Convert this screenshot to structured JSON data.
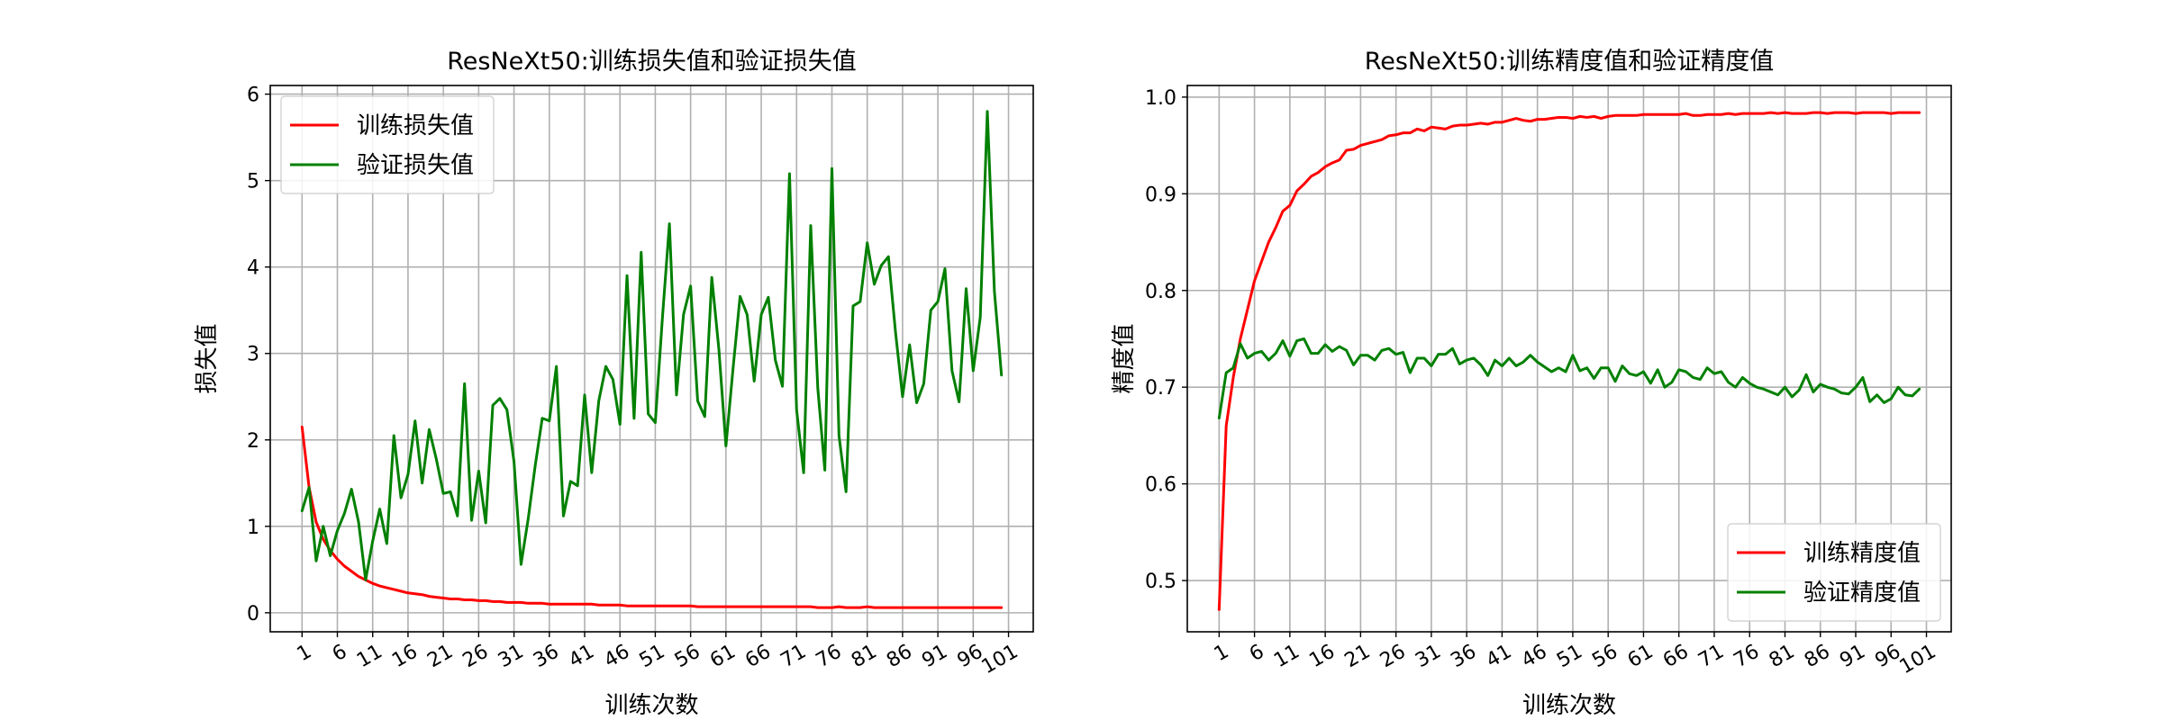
{
  "chart_data": [
    {
      "type": "line",
      "title": "ResNeXt50:训练损失值和验证损失值",
      "xlabel": "训练次数",
      "ylabel": "损失值",
      "xlim": [
        -3.5,
        104.5
      ],
      "ylim": [
        -0.22,
        6.1
      ],
      "xticks": [
        1,
        6,
        11,
        16,
        21,
        26,
        31,
        36,
        41,
        46,
        51,
        56,
        61,
        66,
        71,
        76,
        81,
        86,
        91,
        96,
        101
      ],
      "xtick_labels": [
        "1",
        "6",
        "11",
        "16",
        "21",
        "26",
        "31",
        "36",
        "41",
        "46",
        "51",
        "56",
        "61",
        "66",
        "71",
        "76",
        "81",
        "86",
        "91",
        "96",
        "101"
      ],
      "yticks": [
        0,
        1,
        2,
        3,
        4,
        5,
        6
      ],
      "ytick_labels": [
        "0",
        "1",
        "2",
        "3",
        "4",
        "5",
        "6"
      ],
      "grid": true,
      "legend_position": "upper-left",
      "x": [
        1,
        2,
        3,
        4,
        5,
        6,
        7,
        8,
        9,
        10,
        11,
        12,
        13,
        14,
        15,
        16,
        17,
        18,
        19,
        20,
        21,
        22,
        23,
        24,
        25,
        26,
        27,
        28,
        29,
        30,
        31,
        32,
        33,
        34,
        35,
        36,
        37,
        38,
        39,
        40,
        41,
        42,
        43,
        44,
        45,
        46,
        47,
        48,
        49,
        50,
        51,
        52,
        53,
        54,
        55,
        56,
        57,
        58,
        59,
        60,
        61,
        62,
        63,
        64,
        65,
        66,
        67,
        68,
        69,
        70,
        71,
        72,
        73,
        74,
        75,
        76,
        77,
        78,
        79,
        80,
        81,
        82,
        83,
        84,
        85,
        86,
        87,
        88,
        89,
        90,
        91,
        92,
        93,
        94,
        95,
        96,
        97,
        98,
        99,
        100
      ],
      "series": [
        {
          "name": "训练损失值",
          "color": "#ff0000",
          "values": [
            2.15,
            1.45,
            1.05,
            0.85,
            0.72,
            0.62,
            0.54,
            0.48,
            0.42,
            0.38,
            0.34,
            0.31,
            0.29,
            0.27,
            0.25,
            0.23,
            0.22,
            0.21,
            0.19,
            0.18,
            0.17,
            0.16,
            0.16,
            0.15,
            0.15,
            0.14,
            0.14,
            0.13,
            0.13,
            0.12,
            0.12,
            0.12,
            0.11,
            0.11,
            0.11,
            0.1,
            0.1,
            0.1,
            0.1,
            0.1,
            0.1,
            0.1,
            0.09,
            0.09,
            0.09,
            0.09,
            0.08,
            0.08,
            0.08,
            0.08,
            0.08,
            0.08,
            0.08,
            0.08,
            0.08,
            0.08,
            0.07,
            0.07,
            0.07,
            0.07,
            0.07,
            0.07,
            0.07,
            0.07,
            0.07,
            0.07,
            0.07,
            0.07,
            0.07,
            0.07,
            0.07,
            0.07,
            0.07,
            0.06,
            0.06,
            0.06,
            0.07,
            0.06,
            0.06,
            0.06,
            0.07,
            0.06,
            0.06,
            0.06,
            0.06,
            0.06,
            0.06,
            0.06,
            0.06,
            0.06,
            0.06,
            0.06,
            0.06,
            0.06,
            0.06,
            0.06,
            0.06,
            0.06,
            0.06,
            0.06
          ]
        },
        {
          "name": "验证损失值",
          "color": "#008000",
          "values": [
            1.18,
            1.45,
            0.6,
            1.0,
            0.66,
            0.95,
            1.15,
            1.43,
            1.05,
            0.38,
            0.83,
            1.2,
            0.8,
            2.05,
            1.33,
            1.6,
            2.22,
            1.5,
            2.12,
            1.78,
            1.38,
            1.4,
            1.12,
            2.65,
            1.07,
            1.64,
            1.04,
            2.4,
            2.48,
            2.35,
            1.75,
            0.56,
            1.08,
            1.7,
            2.25,
            2.22,
            2.85,
            1.12,
            1.52,
            1.47,
            2.52,
            1.62,
            2.45,
            2.85,
            2.7,
            2.18,
            3.9,
            2.25,
            4.17,
            2.3,
            2.2,
            3.4,
            4.5,
            2.52,
            3.45,
            3.78,
            2.45,
            2.27,
            3.88,
            3.05,
            1.93,
            2.82,
            3.66,
            3.45,
            2.68,
            3.45,
            3.65,
            2.92,
            2.62,
            5.08,
            2.35,
            1.62,
            4.48,
            2.6,
            1.65,
            5.14,
            2.05,
            1.4,
            3.55,
            3.6,
            4.28,
            3.8,
            4.02,
            4.12,
            3.25,
            2.5,
            3.1,
            2.43,
            2.65,
            3.5,
            3.6,
            3.98,
            2.8,
            2.44,
            3.75,
            2.8,
            3.42,
            5.8,
            3.72,
            2.75
          ]
        }
      ]
    },
    {
      "type": "line",
      "title": "ResNeXt50:训练精度值和验证精度值",
      "xlabel": "训练次数",
      "ylabel": "精度值",
      "xlim": [
        -3.5,
        104.5
      ],
      "ylim": [
        0.447,
        1.012
      ],
      "xticks": [
        1,
        6,
        11,
        16,
        21,
        26,
        31,
        36,
        41,
        46,
        51,
        56,
        61,
        66,
        71,
        76,
        81,
        86,
        91,
        96,
        101
      ],
      "xtick_labels": [
        "1",
        "6",
        "11",
        "16",
        "21",
        "26",
        "31",
        "36",
        "41",
        "46",
        "51",
        "56",
        "61",
        "66",
        "71",
        "76",
        "81",
        "86",
        "91",
        "96",
        "101"
      ],
      "yticks": [
        0.5,
        0.6,
        0.7,
        0.8,
        0.9,
        1.0
      ],
      "ytick_labels": [
        "0.5",
        "0.6",
        "0.7",
        "0.8",
        "0.9",
        "1.0"
      ],
      "grid": true,
      "legend_position": "lower-right",
      "x": [
        1,
        2,
        3,
        4,
        5,
        6,
        7,
        8,
        9,
        10,
        11,
        12,
        13,
        14,
        15,
        16,
        17,
        18,
        19,
        20,
        21,
        22,
        23,
        24,
        25,
        26,
        27,
        28,
        29,
        30,
        31,
        32,
        33,
        34,
        35,
        36,
        37,
        38,
        39,
        40,
        41,
        42,
        43,
        44,
        45,
        46,
        47,
        48,
        49,
        50,
        51,
        52,
        53,
        54,
        55,
        56,
        57,
        58,
        59,
        60,
        61,
        62,
        63,
        64,
        65,
        66,
        67,
        68,
        69,
        70,
        71,
        72,
        73,
        74,
        75,
        76,
        77,
        78,
        79,
        80,
        81,
        82,
        83,
        84,
        85,
        86,
        87,
        88,
        89,
        90,
        91,
        92,
        93,
        94,
        95,
        96,
        97,
        98,
        99,
        100
      ],
      "series": [
        {
          "name": "训练精度值",
          "color": "#ff0000",
          "values": [
            0.47,
            0.66,
            0.71,
            0.75,
            0.78,
            0.81,
            0.83,
            0.85,
            0.865,
            0.882,
            0.888,
            0.903,
            0.91,
            0.918,
            0.922,
            0.928,
            0.932,
            0.935,
            0.945,
            0.946,
            0.95,
            0.952,
            0.954,
            0.956,
            0.96,
            0.961,
            0.963,
            0.963,
            0.967,
            0.965,
            0.969,
            0.968,
            0.967,
            0.97,
            0.971,
            0.971,
            0.972,
            0.973,
            0.972,
            0.974,
            0.974,
            0.976,
            0.978,
            0.976,
            0.975,
            0.977,
            0.977,
            0.978,
            0.979,
            0.979,
            0.978,
            0.98,
            0.979,
            0.98,
            0.978,
            0.98,
            0.981,
            0.981,
            0.981,
            0.981,
            0.982,
            0.982,
            0.982,
            0.982,
            0.982,
            0.982,
            0.983,
            0.981,
            0.981,
            0.982,
            0.982,
            0.982,
            0.983,
            0.982,
            0.983,
            0.983,
            0.983,
            0.983,
            0.984,
            0.983,
            0.984,
            0.983,
            0.983,
            0.983,
            0.984,
            0.984,
            0.983,
            0.984,
            0.984,
            0.984,
            0.983,
            0.984,
            0.984,
            0.984,
            0.984,
            0.983,
            0.984,
            0.984,
            0.984,
            0.984
          ]
        },
        {
          "name": "验证精度值",
          "color": "#008000",
          "values": [
            0.668,
            0.715,
            0.72,
            0.745,
            0.73,
            0.735,
            0.737,
            0.728,
            0.735,
            0.748,
            0.732,
            0.748,
            0.75,
            0.735,
            0.735,
            0.744,
            0.737,
            0.742,
            0.738,
            0.723,
            0.733,
            0.733,
            0.728,
            0.738,
            0.74,
            0.734,
            0.736,
            0.715,
            0.73,
            0.73,
            0.722,
            0.734,
            0.734,
            0.74,
            0.724,
            0.728,
            0.73,
            0.723,
            0.712,
            0.728,
            0.722,
            0.73,
            0.722,
            0.726,
            0.733,
            0.726,
            0.721,
            0.716,
            0.72,
            0.716,
            0.733,
            0.717,
            0.72,
            0.709,
            0.72,
            0.72,
            0.706,
            0.722,
            0.714,
            0.712,
            0.716,
            0.704,
            0.718,
            0.7,
            0.705,
            0.718,
            0.716,
            0.71,
            0.708,
            0.72,
            0.714,
            0.716,
            0.705,
            0.7,
            0.71,
            0.704,
            0.7,
            0.698,
            0.695,
            0.692,
            0.7,
            0.69,
            0.697,
            0.713,
            0.695,
            0.703,
            0.7,
            0.698,
            0.694,
            0.693,
            0.7,
            0.71,
            0.685,
            0.692,
            0.684,
            0.688,
            0.7,
            0.692,
            0.691,
            0.698
          ]
        }
      ]
    }
  ]
}
